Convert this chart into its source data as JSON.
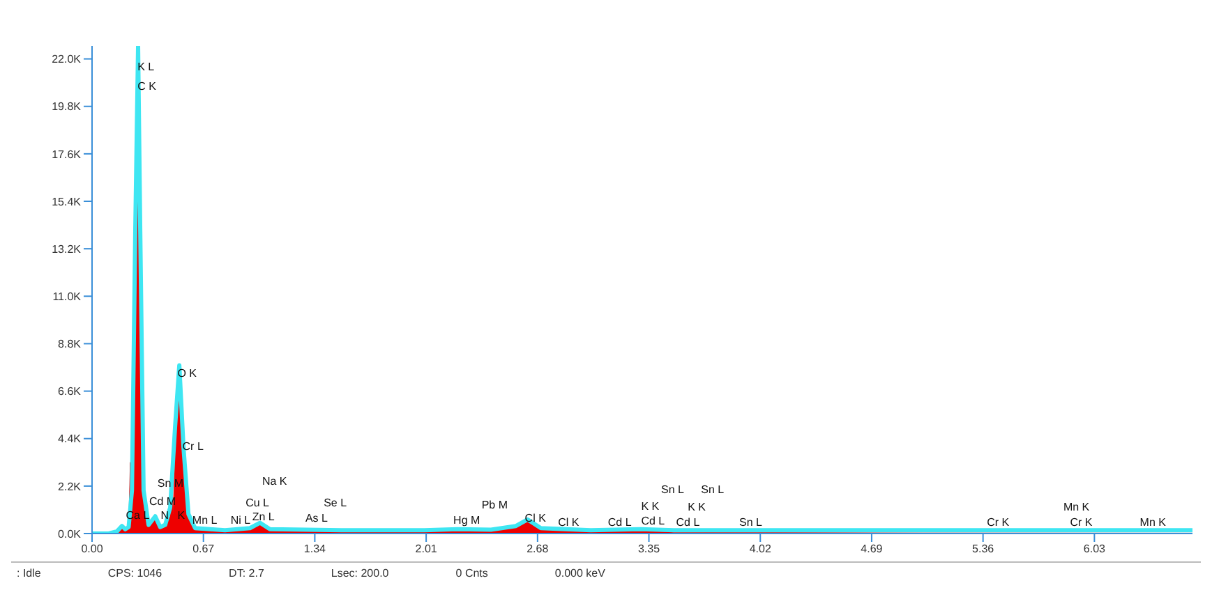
{
  "chart_data": {
    "type": "area",
    "xlim": [
      0,
      6.62
    ],
    "ylim": [
      0,
      22600
    ],
    "xticks": [
      {
        "value": 0,
        "label": "0.00"
      },
      {
        "value": 0.67,
        "label": "0.67"
      },
      {
        "value": 1.34,
        "label": "1.34"
      },
      {
        "value": 2.01,
        "label": "2.01"
      },
      {
        "value": 2.68,
        "label": "2.68"
      },
      {
        "value": 3.35,
        "label": "3.35"
      },
      {
        "value": 4.02,
        "label": "4.02"
      },
      {
        "value": 4.69,
        "label": "4.69"
      },
      {
        "value": 5.36,
        "label": "5.36"
      },
      {
        "value": 6.03,
        "label": "6.03"
      }
    ],
    "yticks": [
      {
        "value": 0,
        "label": "0.0K"
      },
      {
        "value": 2200,
        "label": "2.2K"
      },
      {
        "value": 4400,
        "label": "4.4K"
      },
      {
        "value": 6600,
        "label": "6.6K"
      },
      {
        "value": 8800,
        "label": "8.8K"
      },
      {
        "value": 11000,
        "label": "11.0K"
      },
      {
        "value": 13200,
        "label": "13.2K"
      },
      {
        "value": 15400,
        "label": "15.4K"
      },
      {
        "value": 17600,
        "label": "17.6K"
      },
      {
        "value": 19800,
        "label": "19.8K"
      },
      {
        "value": 22000,
        "label": "22.0K"
      }
    ],
    "grid": false,
    "legend": false,
    "series": [
      {
        "type": "line",
        "color": "#3ee6f2",
        "x": [
          0,
          0.1,
          0.15,
          0.18,
          0.2,
          0.22,
          0.24,
          0.26,
          0.277,
          0.29,
          0.31,
          0.34,
          0.38,
          0.41,
          0.44,
          0.47,
          0.5,
          0.525,
          0.55,
          0.58,
          0.62,
          0.8,
          0.95,
          1.01,
          1.07,
          1.5,
          2.0,
          2.2,
          2.4,
          2.55,
          2.62,
          2.7,
          3.0,
          3.3,
          3.5,
          4.0,
          5.0,
          6.62
        ],
        "values": [
          0,
          0,
          100,
          350,
          200,
          300,
          2000,
          14000,
          22600,
          14000,
          2000,
          400,
          800,
          300,
          400,
          1200,
          5000,
          7800,
          4000,
          900,
          250,
          150,
          250,
          500,
          200,
          150,
          150,
          200,
          180,
          350,
          650,
          250,
          150,
          200,
          150,
          150,
          150,
          150
        ]
      },
      {
        "type": "area",
        "color": "#ee0000",
        "x": [
          0,
          0.1,
          0.15,
          0.18,
          0.2,
          0.22,
          0.23,
          0.24,
          0.26,
          0.277,
          0.29,
          0.31,
          0.34,
          0.38,
          0.41,
          0.44,
          0.47,
          0.48,
          0.49,
          0.5,
          0.525,
          0.55,
          0.58,
          0.62,
          0.8,
          0.95,
          1.01,
          1.07,
          1.5,
          2.0,
          2.2,
          2.4,
          2.55,
          2.62,
          2.7,
          3.0,
          3.3,
          3.5,
          4.0,
          5.0,
          6.62
        ],
        "values": [
          0,
          0,
          50,
          300,
          100,
          250,
          3300,
          1500,
          12000,
          20400,
          12000,
          1500,
          300,
          700,
          200,
          300,
          800,
          3300,
          900,
          4500,
          6600,
          3500,
          800,
          150,
          100,
          200,
          450,
          150,
          100,
          100,
          150,
          120,
          300,
          600,
          200,
          80,
          150,
          60,
          50,
          30,
          20
        ]
      }
    ],
    "annotations": [
      {
        "text": "K L",
        "x": 0.24,
        "y": 21600
      },
      {
        "text": "C K",
        "x": 0.24,
        "y": 20700
      },
      {
        "text": "O K",
        "x": 0.48,
        "y": 7400
      },
      {
        "text": "Cr L",
        "x": 0.51,
        "y": 4000
      },
      {
        "text": "Sn M",
        "x": 0.36,
        "y": 2300
      },
      {
        "text": "Cd M",
        "x": 0.31,
        "y": 1450
      },
      {
        "text": "N",
        "x": 0.38,
        "y": 800
      },
      {
        "text": "K",
        "x": 0.48,
        "y": 800
      },
      {
        "text": "Mn L",
        "x": 0.57,
        "y": 600
      },
      {
        "text": "Hg M",
        "x": 2.14,
        "y": 600
      },
      {
        "text": "Cl K",
        "x": 2.57,
        "y": 700
      },
      {
        "text": "Cl K",
        "x": 2.77,
        "y": 500
      },
      {
        "text": "Cd L",
        "x": 3.07,
        "y": 500
      },
      {
        "text": "Cd L",
        "x": 3.27,
        "y": 550
      },
      {
        "text": "Cd L",
        "x": 3.48,
        "y": 500
      },
      {
        "text": "Sn L",
        "x": 3.86,
        "y": 500
      },
      {
        "text": "Cr K",
        "x": 5.35,
        "y": 500
      },
      {
        "text": "Cr K",
        "x": 5.85,
        "y": 500
      },
      {
        "text": "Mn K",
        "x": 6.27,
        "y": 500
      },
      "Ca L",
      "Ni L",
      "Zn L",
      "Cu L",
      "Na K",
      "Se L",
      "As L",
      "Pb M",
      "K K",
      "K K",
      "Sn L",
      "Sn L",
      "Mn K",
      ": Idle",
      "CPS: 1046",
      "DT: 2.7",
      "Lsec: 200.0",
      "0 Cnts",
      "0.000 keV"
    ]
  }
}
